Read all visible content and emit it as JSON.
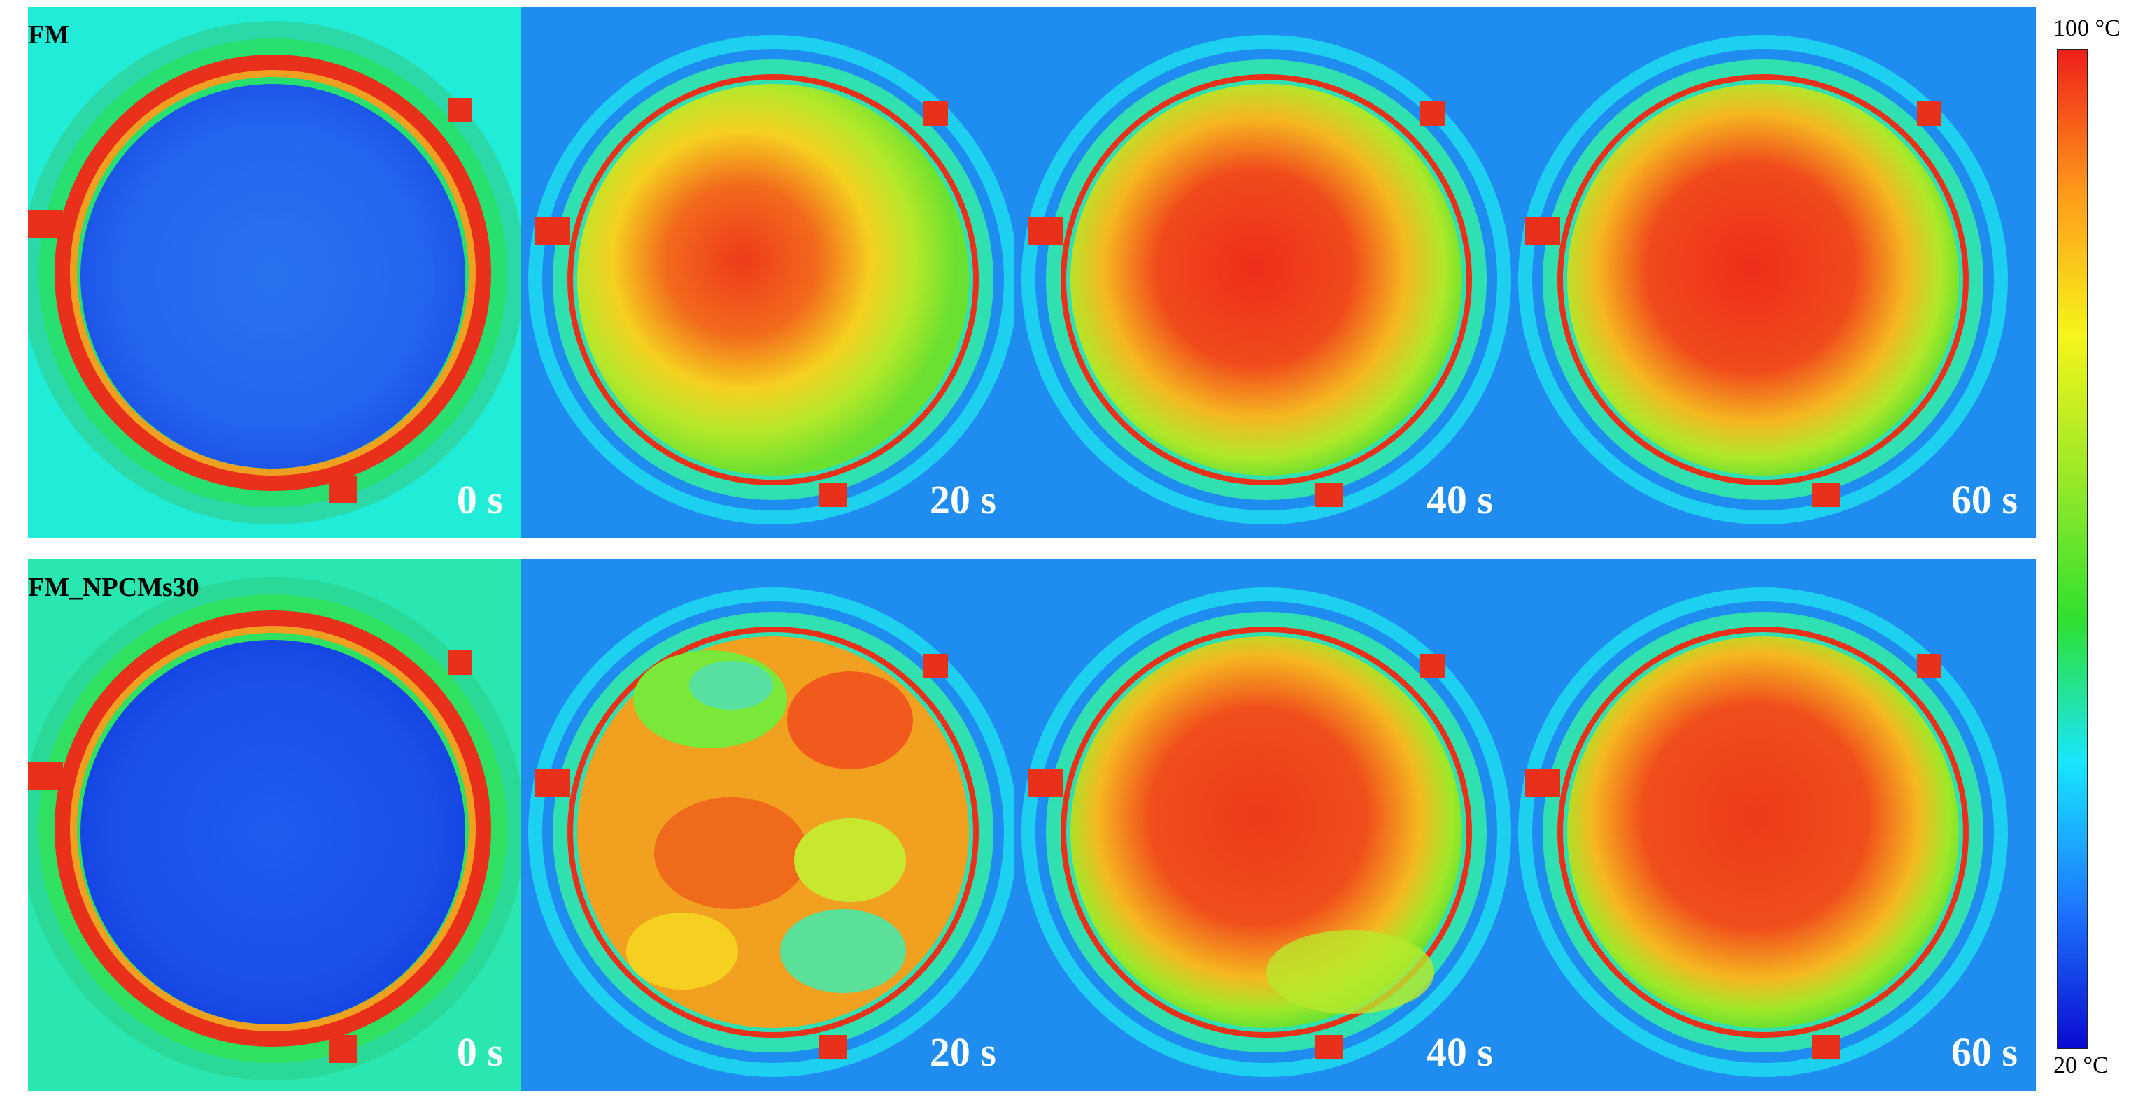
{
  "figure": {
    "rows": [
      {
        "label": "FM",
        "panels": [
          {
            "time": "0 s",
            "state": "cold"
          },
          {
            "time": "20 s",
            "state": "warming"
          },
          {
            "time": "40 s",
            "state": "hot"
          },
          {
            "time": "60 s",
            "state": "hot"
          }
        ]
      },
      {
        "label": "FM_NPCMs30",
        "panels": [
          {
            "time": "0 s",
            "state": "cold"
          },
          {
            "time": "20 s",
            "state": "patchy"
          },
          {
            "time": "40 s",
            "state": "hot"
          },
          {
            "time": "60 s",
            "state": "hot"
          }
        ]
      }
    ],
    "colorbar": {
      "max_label": "100 °C",
      "min_label": "20 °C",
      "max_value": 100,
      "min_value": 20,
      "colors": [
        "#0a0ad0",
        "#1e78ff",
        "#18e6ff",
        "#2fe02f",
        "#9ae828",
        "#f5f51a",
        "#ff9a1a",
        "#ee1f1a"
      ]
    },
    "palette": {
      "cold_bg": "#20ecd8",
      "warm_bg": "#1f8cf0",
      "cold_core": "#1e64ee",
      "hot_core": "#f2481c",
      "mid_core": "#f0b020",
      "ring_hot": "#e81e1a",
      "ring_green": "#32e040"
    }
  }
}
